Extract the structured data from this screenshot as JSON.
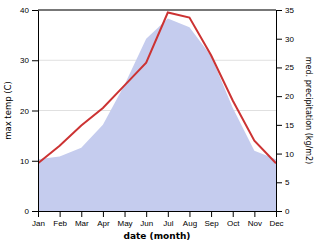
{
  "chart_data": {
    "type": "line",
    "xlabel": "date (month)",
    "ylabel": "max temp (C)",
    "y2label": "med. precipitation (kg/m2)",
    "categories": [
      "Jan",
      "Feb",
      "Mar",
      "Apr",
      "May",
      "Jun",
      "Jul",
      "Aug",
      "Sep",
      "Oct",
      "Nov",
      "Dec"
    ],
    "series": [
      {
        "type": "area",
        "axis": "y2",
        "color": "#c5ccee",
        "values": [
          9.0,
          9.5,
          11.0,
          15.0,
          22.0,
          30.0,
          33.5,
          32.0,
          27.0,
          18.0,
          10.5,
          9.0
        ]
      },
      {
        "type": "line",
        "color": "#cc3333",
        "values": [
          9.5,
          13.0,
          17.0,
          20.5,
          25.0,
          29.5,
          39.5,
          38.5,
          31.0,
          22.0,
          14.0,
          9.5
        ]
      }
    ],
    "ylim": [
      0,
      40
    ],
    "yticks": [
      0,
      10,
      20,
      30,
      40
    ],
    "y2lim": [
      0,
      35
    ],
    "y2ticks": [
      0,
      5,
      10,
      15,
      20,
      25,
      30,
      35
    ],
    "grid": true
  }
}
